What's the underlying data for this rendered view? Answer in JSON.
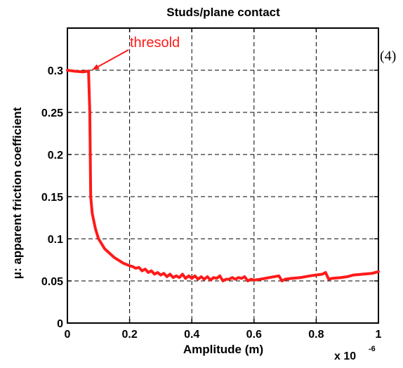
{
  "chart_data": {
    "type": "line",
    "title": "Studs/plane contact",
    "xlabel": "Amplitude (m)",
    "ylabel": "μ: apparent friction coefficient",
    "x_multiplier": {
      "base": "x 10",
      "exponent": "-6"
    },
    "xlim": [
      0,
      1
    ],
    "ylim": [
      0,
      0.35
    ],
    "x_ticks": [
      0,
      0.2,
      0.4,
      0.6,
      0.8,
      1
    ],
    "x_tick_labels": [
      "0",
      "0.2",
      "0.4",
      "0.6",
      "0.8",
      "1"
    ],
    "y_ticks": [
      0,
      0.05,
      0.1,
      0.15,
      0.2,
      0.25,
      0.3
    ],
    "y_tick_labels": [
      "0",
      "0.05",
      "0.1",
      "0.15",
      "0.2",
      "0.25",
      "0.3"
    ],
    "grid": true,
    "grid_style": "dashed",
    "series": [
      {
        "color": "#ff1a1a",
        "x": [
          0,
          0.02,
          0.05,
          0.068,
          0.072,
          0.075,
          0.08,
          0.09,
          0.1,
          0.12,
          0.15,
          0.18,
          0.2,
          0.21,
          0.22,
          0.23,
          0.24,
          0.25,
          0.26,
          0.27,
          0.28,
          0.29,
          0.3,
          0.31,
          0.32,
          0.33,
          0.34,
          0.35,
          0.36,
          0.37,
          0.38,
          0.39,
          0.4,
          0.41,
          0.42,
          0.43,
          0.44,
          0.45,
          0.46,
          0.47,
          0.48,
          0.49,
          0.5,
          0.51,
          0.52,
          0.53,
          0.54,
          0.55,
          0.56,
          0.57,
          0.58,
          0.59,
          0.6,
          0.62,
          0.65,
          0.68,
          0.69,
          0.7,
          0.72,
          0.75,
          0.78,
          0.8,
          0.82,
          0.83,
          0.84,
          0.85,
          0.88,
          0.9,
          0.92,
          0.95,
          0.98,
          1.0
        ],
        "y": [
          0.3,
          0.299,
          0.298,
          0.299,
          0.25,
          0.15,
          0.13,
          0.112,
          0.1,
          0.088,
          0.078,
          0.071,
          0.068,
          0.067,
          0.065,
          0.066,
          0.062,
          0.064,
          0.06,
          0.062,
          0.058,
          0.06,
          0.057,
          0.059,
          0.055,
          0.058,
          0.054,
          0.056,
          0.054,
          0.058,
          0.053,
          0.056,
          0.053,
          0.056,
          0.052,
          0.055,
          0.052,
          0.055,
          0.051,
          0.054,
          0.053,
          0.056,
          0.05,
          0.052,
          0.052,
          0.054,
          0.052,
          0.054,
          0.053,
          0.055,
          0.05,
          0.052,
          0.051,
          0.052,
          0.054,
          0.056,
          0.05,
          0.052,
          0.053,
          0.054,
          0.056,
          0.057,
          0.058,
          0.06,
          0.052,
          0.053,
          0.054,
          0.055,
          0.057,
          0.058,
          0.059,
          0.061
        ]
      }
    ],
    "annotations": [
      {
        "text": "thresold",
        "color": "#ff1a1a",
        "arrow_to": {
          "x": 0.072,
          "y": 0.299
        }
      }
    ]
  },
  "side_label": "(4)"
}
